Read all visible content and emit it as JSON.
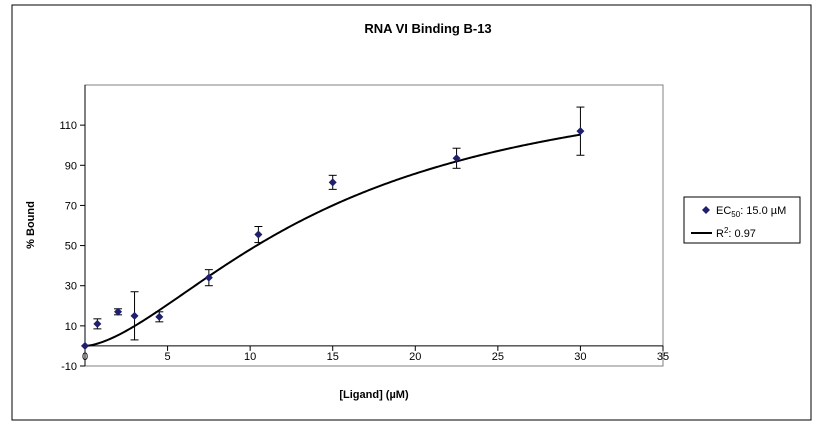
{
  "chart_data": {
    "type": "scatter",
    "title": "RNA VI Binding B-13",
    "xlabel": "[Ligand] (µM)",
    "ylabel": "% Bound",
    "xlim": [
      0,
      35
    ],
    "ylim": [
      -10,
      130
    ],
    "x_ticks": [
      0,
      5,
      10,
      15,
      20,
      25,
      30,
      35
    ],
    "y_ticks": [
      -10,
      10,
      30,
      50,
      70,
      90,
      110
    ],
    "x_tick_labels": [
      "0",
      "5",
      "10",
      "15",
      "20",
      "25",
      "30",
      "35"
    ],
    "y_tick_labels": [
      "-10",
      "10",
      "30",
      "50",
      "70",
      "90",
      "110"
    ],
    "grid": false,
    "legend_position": "right",
    "series": [
      {
        "kind": "points",
        "color": "#1f1f6e",
        "marker": "diamond",
        "legend_prefix": "EC",
        "legend_subscript": "50",
        "legend_suffix": ": 15.0 µM",
        "x": [
          0,
          0.75,
          2,
          3,
          4.5,
          7.5,
          10.5,
          15,
          22.5,
          30
        ],
        "y": [
          0,
          11,
          17,
          15,
          14.5,
          34,
          55.5,
          81.5,
          93.5,
          107
        ],
        "err": [
          0,
          2.5,
          1.5,
          12,
          2.5,
          4,
          4,
          3.5,
          5,
          12
        ]
      },
      {
        "kind": "fit",
        "color": "#000000",
        "legend_prefix": "R",
        "legend_superscript": "2",
        "legend_suffix": ": 0.97",
        "model": {
          "top": 140,
          "ec50": 15.0,
          "hill": 1.6
        },
        "x_range": [
          0,
          30
        ]
      }
    ]
  }
}
